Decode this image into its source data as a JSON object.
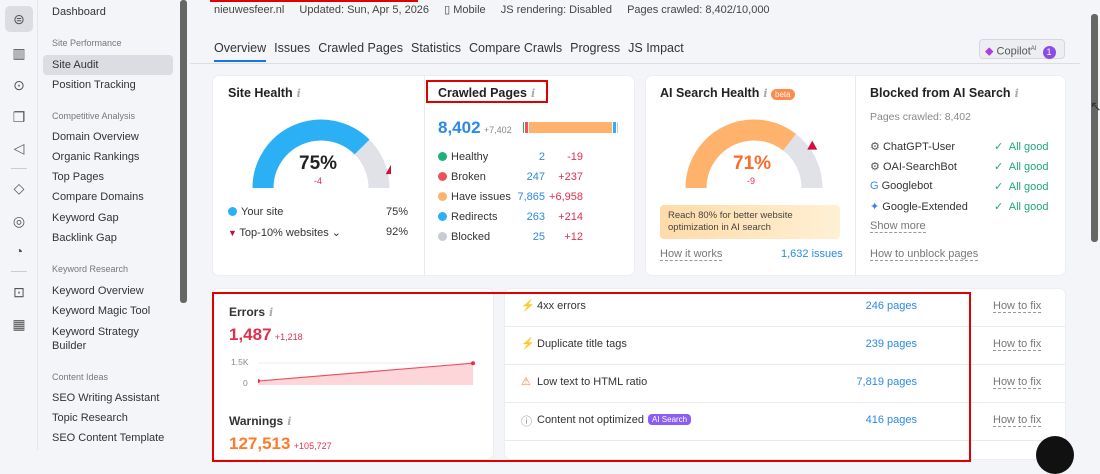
{
  "rail_icons": [
    "semrush-logo-icon",
    "bar-chart-icon",
    "location-pin-icon",
    "copy-pages-icon",
    "megaphone-icon",
    "rank-icon",
    "chat-icon",
    "cursor-target-icon",
    "trend-chart-icon",
    "apps-grid-icon"
  ],
  "sidebar": {
    "dashboard": "Dashboard",
    "sections": [
      {
        "title": "Site Performance",
        "items": [
          "Site Audit",
          "Position Tracking"
        ]
      },
      {
        "title": "Competitive Analysis",
        "items": [
          "Domain Overview",
          "Organic Rankings",
          "Top Pages",
          "Compare Domains",
          "Keyword Gap",
          "Backlink Gap"
        ]
      },
      {
        "title": "Keyword Research",
        "items": [
          "Keyword Overview",
          "Keyword Magic Tool",
          "Keyword Strategy Builder"
        ]
      },
      {
        "title": "Content Ideas",
        "items": [
          "SEO Writing Assistant",
          "Topic Research",
          "SEO Content Template"
        ]
      }
    ],
    "active": "Site Audit"
  },
  "header": {
    "domain": "nieuwesfeer.nl",
    "updated": "Updated: Sun, Apr 5, 2026",
    "device": "Mobile",
    "js": "JS rendering: Disabled",
    "pages": "Pages crawled: 8,402/10,000"
  },
  "tabs": [
    "Overview",
    "Issues",
    "Crawled Pages",
    "Statistics",
    "Compare Crawls",
    "Progress",
    "JS Impact"
  ],
  "active_tab": "Overview",
  "copilot": {
    "label": "Copilot",
    "sup": "AI",
    "badge": "1"
  },
  "site_health": {
    "title": "Site Health",
    "value": "75%",
    "delta": "-4",
    "score": 75,
    "top10": 92,
    "your_site_label": "Your site",
    "your_site_value": "75%",
    "top_label": "Top-10% websites",
    "top_value": "92%"
  },
  "crawled": {
    "title": "Crawled Pages",
    "total": "8,402",
    "delta": "+7,402",
    "rows": [
      {
        "label": "Healthy",
        "value": "2",
        "delta": "-19",
        "color": "#1fb07a"
      },
      {
        "label": "Broken",
        "value": "247",
        "delta": "+237",
        "color": "#f0505a"
      },
      {
        "label": "Have issues",
        "value": "7,865",
        "delta": "+6,958",
        "color": "#ffb26b"
      },
      {
        "label": "Redirects",
        "value": "263",
        "delta": "+214",
        "color": "#2bb0f5"
      },
      {
        "label": "Blocked",
        "value": "25",
        "delta": "+12",
        "color": "#c8cbd3"
      }
    ]
  },
  "ai_health": {
    "title": "AI Search Health",
    "badge": "beta",
    "value": "71%",
    "delta": "-9",
    "score": 71,
    "target": 80,
    "note": "Reach 80% for better website optimization in AI search",
    "how": "How it works",
    "issues": "1,632 issues"
  },
  "blocked": {
    "title": "Blocked from AI Search",
    "pages": "Pages crawled: 8,402",
    "bots": [
      {
        "name": "ChatGPT-User",
        "icon": "openai-icon",
        "status": "All good"
      },
      {
        "name": "OAI-SearchBot",
        "icon": "openai-icon",
        "status": "All good"
      },
      {
        "name": "Googlebot",
        "icon": "google-icon",
        "status": "All good"
      },
      {
        "name": "Google-Extended",
        "icon": "gemini-icon",
        "status": "All good"
      }
    ],
    "more": "Show more",
    "unblock": "How to unblock pages"
  },
  "errors": {
    "title": "Errors",
    "value": "1,487",
    "delta": "+1,218",
    "ymax": "1.5K",
    "ymin": "0",
    "series": [
      269,
      1487
    ]
  },
  "warnings": {
    "title": "Warnings",
    "value": "127,513",
    "delta": "+105,727"
  },
  "issues": [
    {
      "name": "4xx errors",
      "type": "error",
      "pages": "246 pages",
      "fix": "How to fix"
    },
    {
      "name": "Duplicate title tags",
      "type": "error",
      "pages": "239 pages",
      "fix": "How to fix"
    },
    {
      "name": "Low text to HTML ratio",
      "type": "warning",
      "pages": "7,819 pages",
      "fix": "How to fix"
    },
    {
      "name": "Content not optimized",
      "type": "notice",
      "tag": "AI Search",
      "pages": "416 pages",
      "fix": "How to fix"
    }
  ]
}
